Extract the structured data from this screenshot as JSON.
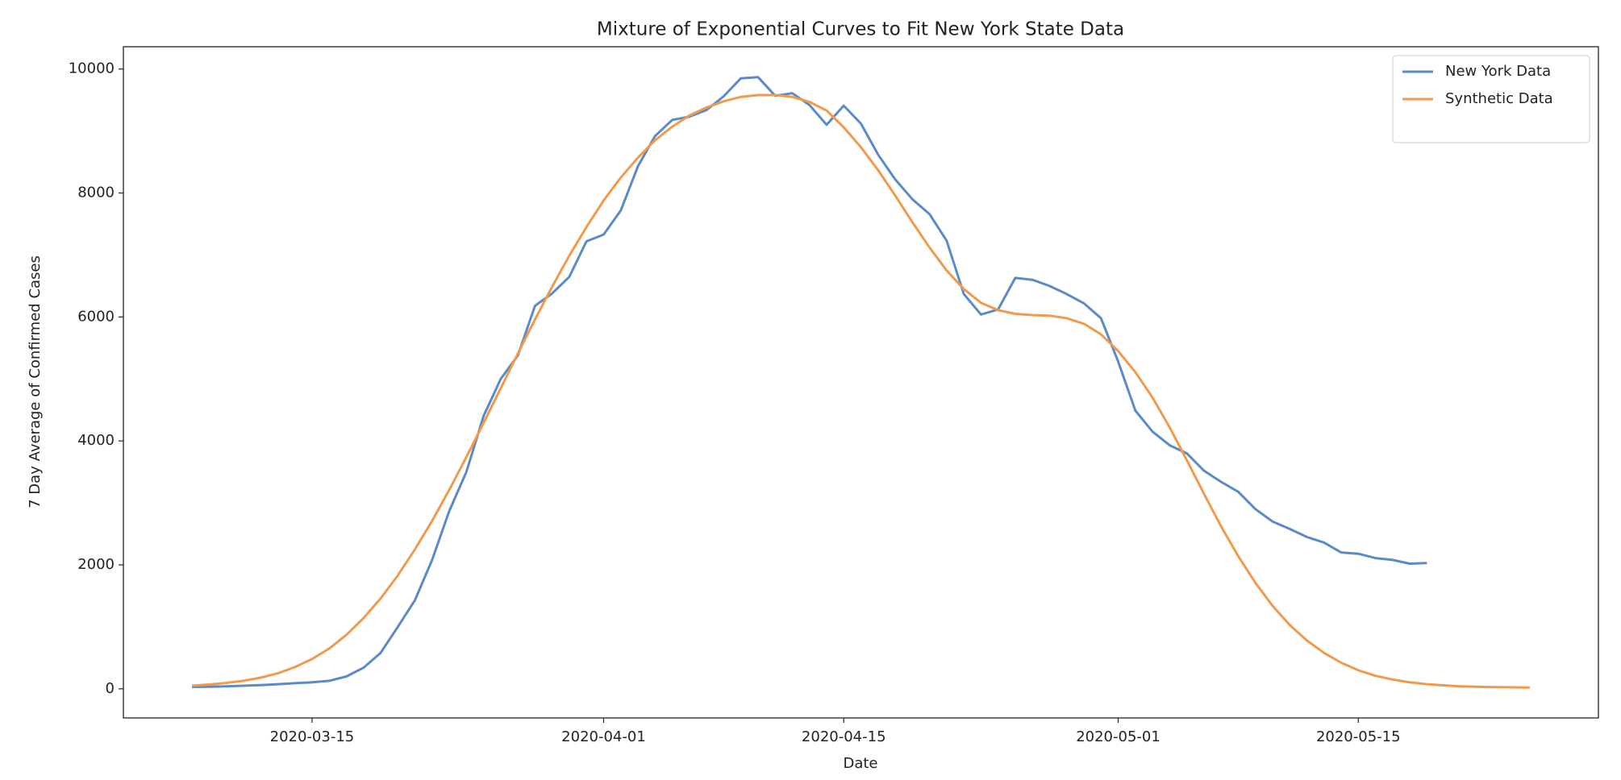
{
  "chart_data": {
    "type": "line",
    "title": "Mixture of Exponential Curves to Fit New York State Data",
    "xlabel": "Date",
    "ylabel": "7 Day Average of Confirmed Cases",
    "x": [
      "2020-03-08",
      "2020-03-09",
      "2020-03-10",
      "2020-03-11",
      "2020-03-12",
      "2020-03-13",
      "2020-03-14",
      "2020-03-15",
      "2020-03-16",
      "2020-03-17",
      "2020-03-18",
      "2020-03-19",
      "2020-03-20",
      "2020-03-21",
      "2020-03-22",
      "2020-03-23",
      "2020-03-24",
      "2020-03-25",
      "2020-03-26",
      "2020-03-27",
      "2020-03-28",
      "2020-03-29",
      "2020-03-30",
      "2020-03-31",
      "2020-04-01",
      "2020-04-02",
      "2020-04-03",
      "2020-04-04",
      "2020-04-05",
      "2020-04-06",
      "2020-04-07",
      "2020-04-08",
      "2020-04-09",
      "2020-04-10",
      "2020-04-11",
      "2020-04-12",
      "2020-04-13",
      "2020-04-14",
      "2020-04-15",
      "2020-04-16",
      "2020-04-17",
      "2020-04-18",
      "2020-04-19",
      "2020-04-20",
      "2020-04-21",
      "2020-04-22",
      "2020-04-23",
      "2020-04-24",
      "2020-04-25",
      "2020-04-26",
      "2020-04-27",
      "2020-04-28",
      "2020-04-29",
      "2020-04-30",
      "2020-05-01",
      "2020-05-02",
      "2020-05-03",
      "2020-05-04",
      "2020-05-05",
      "2020-05-06",
      "2020-05-07",
      "2020-05-08",
      "2020-05-09",
      "2020-05-10",
      "2020-05-11",
      "2020-05-12",
      "2020-05-13",
      "2020-05-14",
      "2020-05-15",
      "2020-05-16",
      "2020-05-17",
      "2020-05-18",
      "2020-05-19",
      "2020-05-20",
      "2020-05-21",
      "2020-05-22",
      "2020-05-23",
      "2020-05-24",
      "2020-05-25"
    ],
    "series": [
      {
        "name": "New York Data",
        "color": "#5b8bc6",
        "values": [
          30,
          35,
          40,
          50,
          60,
          75,
          90,
          105,
          130,
          200,
          340,
          580,
          1000,
          1430,
          2080,
          2870,
          3500,
          4400,
          5000,
          5380,
          6180,
          6380,
          6650,
          7220,
          7330,
          7720,
          8430,
          8920,
          9180,
          9230,
          9340,
          9560,
          9850,
          9870,
          9570,
          9610,
          9420,
          9100,
          9410,
          9120,
          8620,
          8220,
          7900,
          7660,
          7230,
          6370,
          6040,
          6120,
          6630,
          6600,
          6500,
          6370,
          6220,
          5980,
          5280,
          4490,
          4150,
          3930,
          3800,
          3520,
          3340,
          3180,
          2900,
          2700,
          2580,
          2450,
          2360,
          2200,
          2180,
          2110,
          2080,
          2020,
          2030,
          null,
          null,
          null,
          null,
          null,
          null
        ]
      },
      {
        "name": "Synthetic Data",
        "color": "#ef9a4d",
        "values": [
          50,
          70,
          95,
          130,
          180,
          250,
          350,
          480,
          650,
          870,
          1140,
          1460,
          1830,
          2250,
          2710,
          3210,
          3740,
          4290,
          4850,
          5410,
          5960,
          6490,
          6990,
          7450,
          7880,
          8250,
          8570,
          8850,
          9070,
          9250,
          9380,
          9480,
          9550,
          9580,
          9580,
          9550,
          9470,
          9330,
          9060,
          8740,
          8370,
          7960,
          7530,
          7120,
          6750,
          6450,
          6230,
          6110,
          6050,
          6030,
          6020,
          5980,
          5890,
          5720,
          5450,
          5110,
          4700,
          4220,
          3690,
          3150,
          2620,
          2140,
          1710,
          1340,
          1030,
          780,
          580,
          420,
          300,
          210,
          150,
          105,
          75,
          55,
          40,
          32,
          27,
          24,
          22
        ]
      }
    ],
    "xlim": [
      "2020-03-04",
      "2020-05-29"
    ],
    "xticks": [
      "2020-03-15",
      "2020-04-01",
      "2020-04-15",
      "2020-05-01",
      "2020-05-15"
    ],
    "ylim": [
      -470,
      10360
    ],
    "yticks": [
      0,
      2000,
      4000,
      6000,
      8000,
      10000
    ],
    "grid": false,
    "legend": "upper right"
  }
}
